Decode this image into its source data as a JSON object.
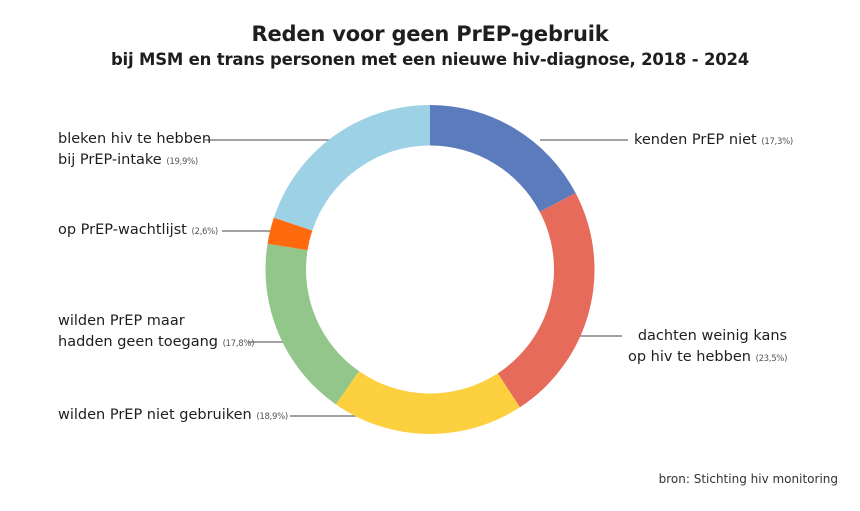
{
  "title": "Reden voor geen PrEP-gebruik",
  "subtitle": "bij MSM en trans personen met een nieuwe hiv-diagnose, 2018 - 2024",
  "source": "bron: Stichting hiv monitoring",
  "chart_data": {
    "type": "pie",
    "variant": "donut",
    "title": "Reden voor geen PrEP-gebruik",
    "subtitle": "bij MSM en trans personen met een nieuwe hiv-diagnose, 2018 - 2024",
    "start": "top, clockwise",
    "slices": [
      {
        "label_lines": [
          "kenden PrEP niet"
        ],
        "value": 17.3,
        "value_label": "(17,3%)",
        "color": "#5b7bbd",
        "side": "right"
      },
      {
        "label_lines": [
          "dachten weinig kans",
          "op hiv te hebben"
        ],
        "value": 23.5,
        "value_label": "(23,5%)",
        "color": "#e66b5b",
        "side": "right"
      },
      {
        "label_lines": [
          "wilden PrEP niet gebruiken"
        ],
        "value": 18.9,
        "value_label": "(18,9%)",
        "color": "#fdd03f",
        "side": "left"
      },
      {
        "label_lines": [
          "wilden PrEP maar",
          "hadden geen toegang"
        ],
        "value": 17.8,
        "value_label": "(17,8%)",
        "color": "#93c68a",
        "side": "left"
      },
      {
        "label_lines": [
          "op PrEP-wachtlijst"
        ],
        "value": 2.6,
        "value_label": "(2,6%)",
        "color": "#fe6a0d",
        "side": "left"
      },
      {
        "label_lines": [
          "bleken hiv te hebben",
          "bij PrEP-intake"
        ],
        "value": 19.9,
        "value_label": "(19,9%)",
        "color": "#9dd2e6",
        "side": "left"
      }
    ],
    "legend": "none (direct labels with leader lines)"
  }
}
